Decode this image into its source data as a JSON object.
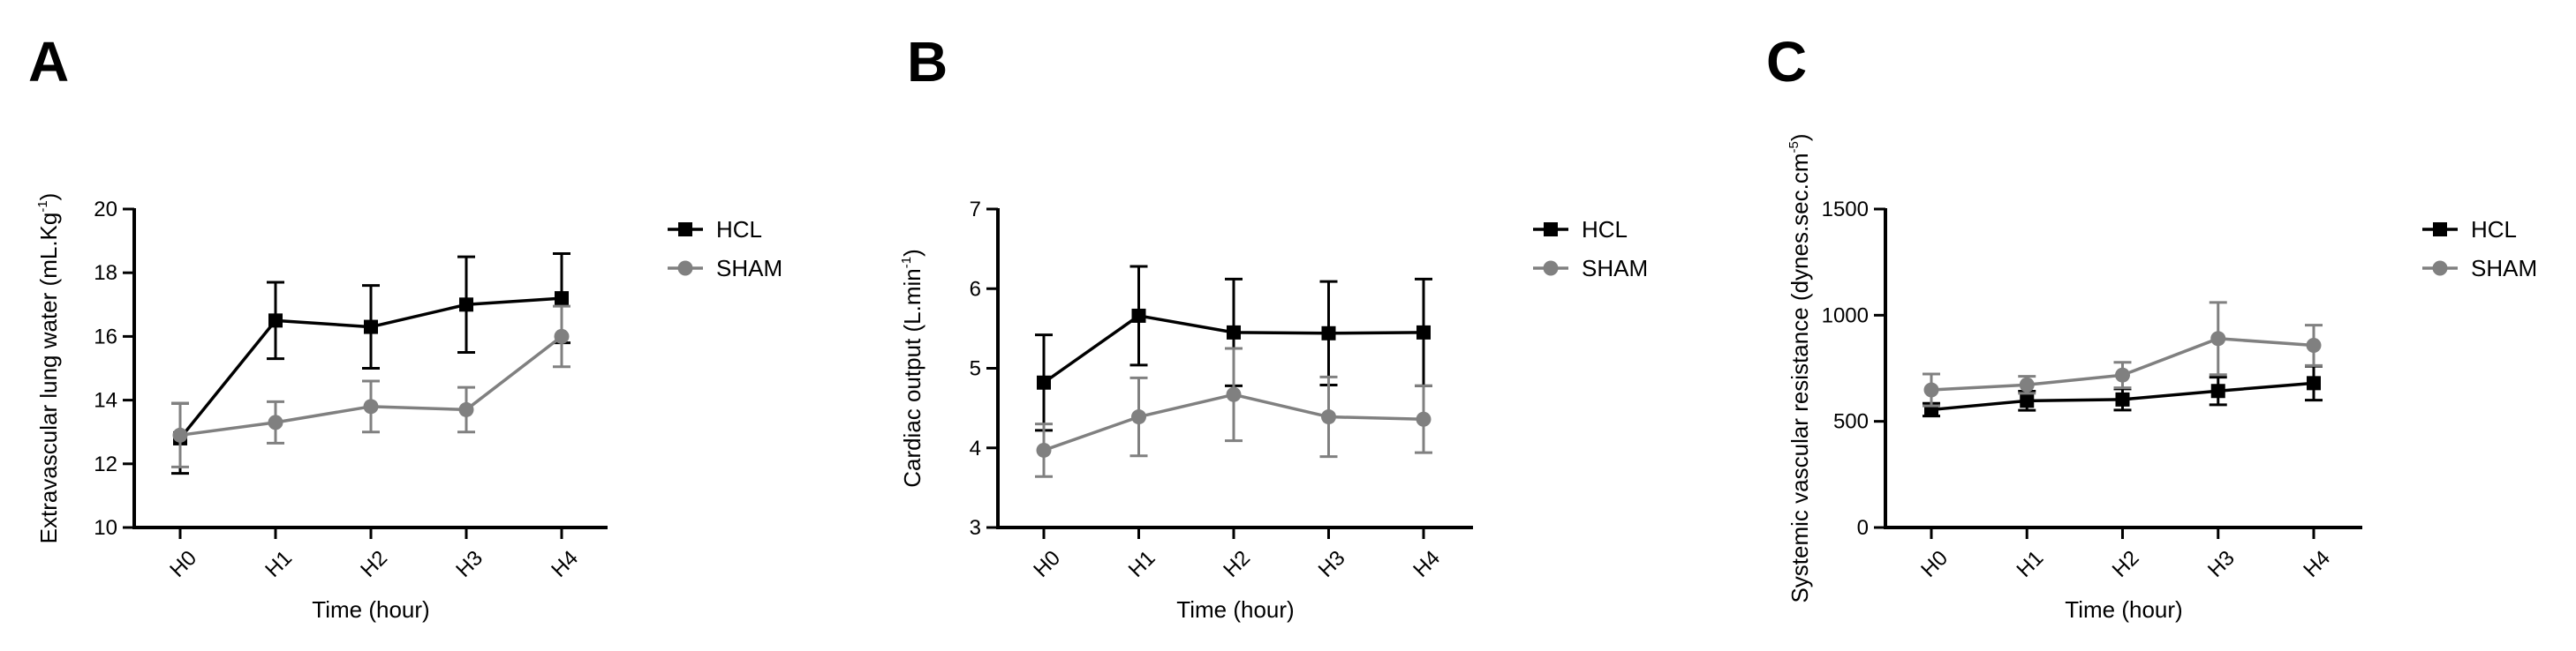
{
  "colors": {
    "hcl": "#000000",
    "sham": "#808080",
    "axis": "#000000"
  },
  "chart_data": [
    {
      "panel": "A",
      "type": "line",
      "categories": [
        "H0",
        "H1",
        "H2",
        "H3",
        "H4"
      ],
      "xlabel": "Time (hour)",
      "ylabel": {
        "main": "Extravascular lung water (mL.Kg",
        "sup": "-1",
        "end": ")"
      },
      "ylim": [
        10,
        20
      ],
      "yticks": [
        "10",
        "12",
        "14",
        "16",
        "18",
        "20"
      ],
      "legend_position": "top-right",
      "series": [
        {
          "name": "HCL",
          "marker": "square",
          "values": [
            12.8,
            16.5,
            16.3,
            17.0,
            17.2
          ],
          "errors": [
            1.1,
            1.2,
            1.3,
            1.5,
            1.4
          ]
        },
        {
          "name": "SHAM",
          "marker": "circle",
          "values": [
            12.9,
            13.3,
            13.8,
            13.7,
            16.0
          ],
          "errors": [
            1.0,
            0.65,
            0.8,
            0.7,
            0.95
          ]
        }
      ]
    },
    {
      "panel": "B",
      "type": "line",
      "categories": [
        "H0",
        "H1",
        "H2",
        "H3",
        "H4"
      ],
      "xlabel": "Time (hour)",
      "ylabel": {
        "main": "Cardiac output (L.min",
        "sup": "-1",
        "end": ")"
      },
      "ylim": [
        3,
        7
      ],
      "yticks": [
        "3",
        "4",
        "5",
        "6",
        "7"
      ],
      "legend_position": "top-right",
      "series": [
        {
          "name": "HCL",
          "marker": "square",
          "values": [
            4.82,
            5.66,
            5.45,
            5.44,
            5.45
          ],
          "errors": [
            0.6,
            0.62,
            0.67,
            0.65,
            0.67
          ]
        },
        {
          "name": "SHAM",
          "marker": "circle",
          "values": [
            3.97,
            4.39,
            4.67,
            4.39,
            4.36
          ],
          "errors": [
            0.33,
            0.49,
            0.58,
            0.5,
            0.42
          ]
        }
      ]
    },
    {
      "panel": "C",
      "type": "line",
      "categories": [
        "H0",
        "H1",
        "H2",
        "H3",
        "H4"
      ],
      "xlabel": "Time (hour)",
      "ylabel": {
        "main": "Systemic vascular resistance (dynes.sec.cm",
        "sup": "-5",
        "end": ")"
      },
      "ylim": [
        0,
        1500
      ],
      "yticks": [
        "0",
        "500",
        "1000",
        "1500"
      ],
      "legend_position": "top-right",
      "series": [
        {
          "name": "HCL",
          "marker": "square",
          "values": [
            555,
            597,
            603,
            643,
            680
          ],
          "errors": [
            30,
            45,
            50,
            65,
            80
          ]
        },
        {
          "name": "SHAM",
          "marker": "circle",
          "values": [
            648,
            672,
            718,
            890,
            858
          ],
          "errors": [
            75,
            40,
            60,
            170,
            95
          ]
        }
      ]
    }
  ]
}
